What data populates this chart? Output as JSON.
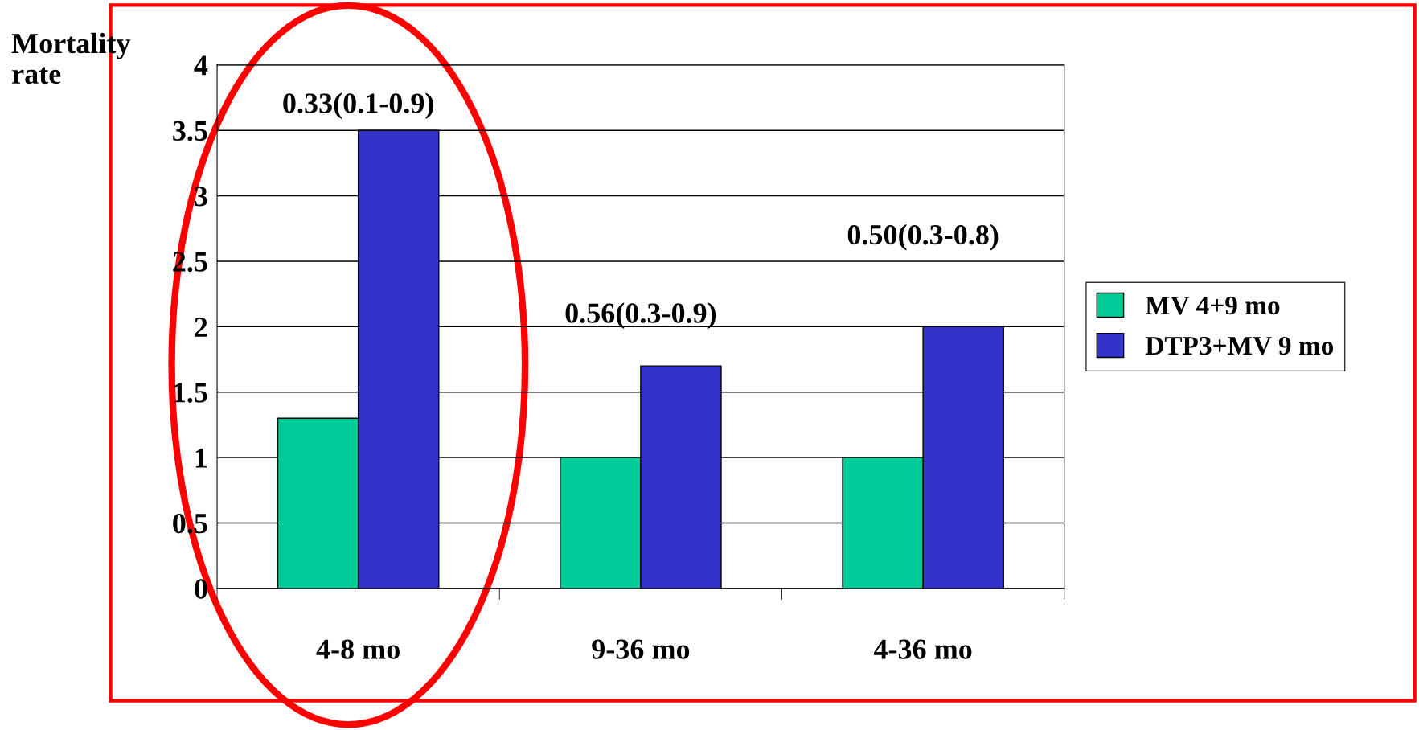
{
  "chart_data": {
    "type": "bar",
    "ylabel": "Mortality\nrate",
    "categories": [
      "4-8 mo",
      "9-36 mo",
      "4-36 mo"
    ],
    "series": [
      {
        "name": "MV 4+9 mo",
        "color": "#00cc99",
        "values": [
          1.3,
          1.0,
          1.0
        ]
      },
      {
        "name": "DTP3+MV 9 mo",
        "color": "#3333cc",
        "values": [
          3.5,
          1.7,
          2.0
        ]
      }
    ],
    "ylim": [
      0,
      4
    ],
    "yticks": [
      0,
      0.5,
      1,
      1.5,
      2,
      2.5,
      3,
      3.5,
      4
    ],
    "grid": "y",
    "legend": "right",
    "annotations": [
      "0.33(0.1-0.9)",
      "0.56(0.3-0.9)",
      "0.50(0.3-0.8)"
    ]
  }
}
